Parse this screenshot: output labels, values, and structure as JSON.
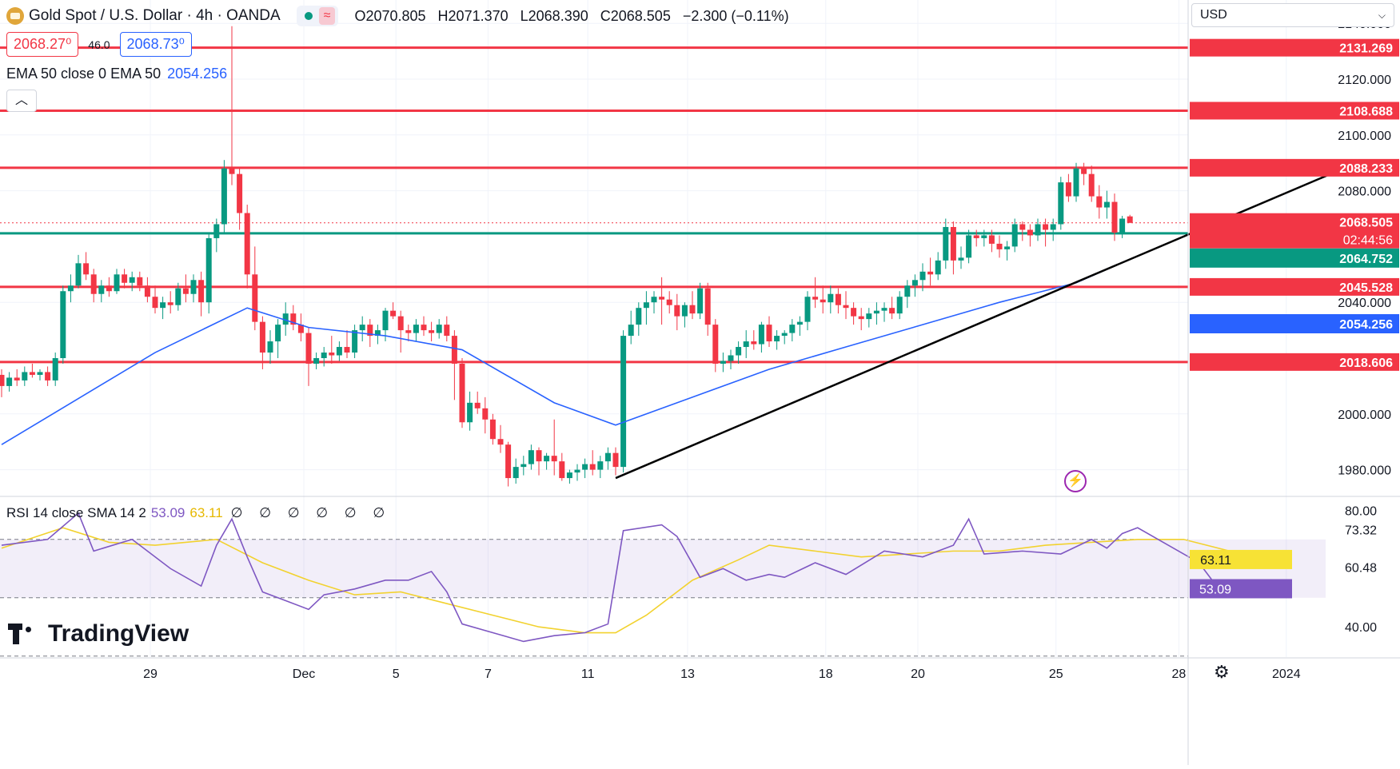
{
  "header": {
    "symbol": "Gold Spot / U.S. Dollar · 4h · OANDA",
    "open": "O2070.805",
    "high": "H2071.370",
    "low": "L2068.390",
    "close": "C2068.505",
    "change": "−2.300 (−0.11%)"
  },
  "quote": {
    "bid": "2068.27⁰",
    "spread": "46.0",
    "ask": "2068.73⁰"
  },
  "ema_legend": {
    "label": "EMA 50 close 0 EMA 50",
    "value": "2054.256"
  },
  "rsi_legend": {
    "label": "RSI 14 close SMA 14 2",
    "rsi": "53.09",
    "sma": "63.11",
    "nulls": "∅ ∅ ∅ ∅ ∅ ∅"
  },
  "currency": "USD",
  "brand": "TradingView",
  "colors": {
    "up": "#089981",
    "down": "#f23645",
    "ema": "#2962ff",
    "level": "#f23645",
    "support": "#089981",
    "rsi": "#7e57c2",
    "rsi_sma": "#f2d22f"
  },
  "chart_data": {
    "type": "candlestick",
    "symbol": "XAUUSD",
    "timeframe": "4h",
    "x_ticks": [
      "29",
      "Dec",
      "5",
      "7",
      "11",
      "13",
      "18",
      "20",
      "25",
      "28",
      "2024"
    ],
    "y_ticks": [
      "2140.000",
      "2120.000",
      "2100.000",
      "2080.000",
      "2040.000",
      "2000.000",
      "1980.000"
    ],
    "ylim": [
      1976.5,
      2146
    ],
    "candles": [
      [
        2014,
        2016,
        2006,
        2010
      ],
      [
        2010,
        2015,
        2008,
        2013
      ],
      [
        2013,
        2016,
        2010,
        2012
      ],
      [
        2012,
        2017,
        2010,
        2015
      ],
      [
        2015,
        2018,
        2013,
        2014
      ],
      [
        2014,
        2016,
        2012,
        2015
      ],
      [
        2015,
        2017,
        2010,
        2012
      ],
      [
        2012,
        2022,
        2010,
        2020
      ],
      [
        2020,
        2046,
        2018,
        2044
      ],
      [
        2044,
        2050,
        2040,
        2046
      ],
      [
        2046,
        2057,
        2045,
        2054
      ],
      [
        2054,
        2058,
        2048,
        2050
      ],
      [
        2050,
        2052,
        2040,
        2043
      ],
      [
        2043,
        2048,
        2040,
        2046
      ],
      [
        2046,
        2049,
        2042,
        2044
      ],
      [
        2044,
        2052,
        2043,
        2050
      ],
      [
        2050,
        2052,
        2045,
        2047
      ],
      [
        2047,
        2051,
        2044,
        2049
      ],
      [
        2049,
        2051,
        2044,
        2046
      ],
      [
        2046,
        2049,
        2040,
        2042
      ],
      [
        2042,
        2046,
        2036,
        2038
      ],
      [
        2038,
        2042,
        2034,
        2040
      ],
      [
        2040,
        2044,
        2036,
        2039
      ],
      [
        2039,
        2047,
        2037,
        2045
      ],
      [
        2045,
        2050,
        2040,
        2043
      ],
      [
        2043,
        2050,
        2040,
        2048
      ],
      [
        2048,
        2051,
        2035,
        2040
      ],
      [
        2040,
        2065,
        2036,
        2063
      ],
      [
        2063,
        2070,
        2058,
        2068
      ],
      [
        2068,
        2091,
        2065,
        2088
      ],
      [
        2088,
        2139,
        2082,
        2086
      ],
      [
        2086,
        2088,
        2066,
        2072
      ],
      [
        2072,
        2075,
        2045,
        2050
      ],
      [
        2050,
        2060,
        2030,
        2033
      ],
      [
        2033,
        2035,
        2016,
        2022
      ],
      [
        2022,
        2030,
        2018,
        2026
      ],
      [
        2026,
        2034,
        2020,
        2032
      ],
      [
        2032,
        2040,
        2028,
        2036
      ],
      [
        2036,
        2039,
        2030,
        2032
      ],
      [
        2032,
        2036,
        2026,
        2029
      ],
      [
        2029,
        2031,
        2010,
        2018
      ],
      [
        2018,
        2022,
        2016,
        2020
      ],
      [
        2020,
        2024,
        2017,
        2022
      ],
      [
        2022,
        2028,
        2018,
        2021
      ],
      [
        2021,
        2026,
        2019,
        2024
      ],
      [
        2024,
        2030,
        2020,
        2022
      ],
      [
        2022,
        2032,
        2020,
        2030
      ],
      [
        2030,
        2035,
        2026,
        2032
      ],
      [
        2032,
        2034,
        2024,
        2028
      ],
      [
        2028,
        2032,
        2025,
        2030
      ],
      [
        2030,
        2038,
        2026,
        2037
      ],
      [
        2037,
        2040,
        2034,
        2035
      ],
      [
        2035,
        2037,
        2022,
        2030
      ],
      [
        2030,
        2032,
        2026,
        2029
      ],
      [
        2029,
        2034,
        2026,
        2032
      ],
      [
        2032,
        2035,
        2028,
        2030
      ],
      [
        2030,
        2033,
        2026,
        2029
      ],
      [
        2029,
        2034,
        2027,
        2032
      ],
      [
        2032,
        2035,
        2026,
        2028
      ],
      [
        2028,
        2030,
        2005,
        2018
      ],
      [
        2018,
        2020,
        1995,
        1997
      ],
      [
        1997,
        2008,
        1994,
        2004
      ],
      [
        2004,
        2008,
        2000,
        2002
      ],
      [
        2002,
        2006,
        1993,
        1998
      ],
      [
        1998,
        2000,
        1989,
        1991
      ],
      [
        1991,
        1996,
        1986,
        1989
      ],
      [
        1989,
        1990,
        1974,
        1977
      ],
      [
        1977,
        1984,
        1975,
        1981
      ],
      [
        1981,
        1985,
        1978,
        1982
      ],
      [
        1982,
        1989,
        1980,
        1987
      ],
      [
        1987,
        1988,
        1978,
        1983
      ],
      [
        1983,
        1986,
        1980,
        1985
      ],
      [
        1985,
        1998,
        1978,
        1983
      ],
      [
        1983,
        1986,
        1976,
        1977
      ],
      [
        1977,
        1980,
        1975,
        1979
      ],
      [
        1979,
        1982,
        1976,
        1980
      ],
      [
        1980,
        1984,
        1977,
        1982
      ],
      [
        1982,
        1987,
        1978,
        1980
      ],
      [
        1980,
        1985,
        1977,
        1983
      ],
      [
        1983,
        1988,
        1980,
        1986
      ],
      [
        1986,
        1988,
        1978,
        1981
      ],
      [
        1981,
        2030,
        1979,
        2028
      ],
      [
        2028,
        2037,
        2025,
        2032
      ],
      [
        2032,
        2040,
        2028,
        2038
      ],
      [
        2038,
        2044,
        2032,
        2040
      ],
      [
        2040,
        2044,
        2036,
        2042
      ],
      [
        2042,
        2049,
        2032,
        2041
      ],
      [
        2041,
        2044,
        2036,
        2039
      ],
      [
        2039,
        2043,
        2030,
        2035
      ],
      [
        2035,
        2040,
        2031,
        2039
      ],
      [
        2039,
        2044,
        2034,
        2036
      ],
      [
        2036,
        2047,
        2034,
        2045
      ],
      [
        2045,
        2047,
        2028,
        2032
      ],
      [
        2032,
        2034,
        2015,
        2018
      ],
      [
        2018,
        2022,
        2015,
        2019
      ],
      [
        2019,
        2023,
        2016,
        2021
      ],
      [
        2021,
        2026,
        2018,
        2024
      ],
      [
        2024,
        2030,
        2020,
        2026
      ],
      [
        2026,
        2030,
        2023,
        2025
      ],
      [
        2025,
        2033,
        2022,
        2032
      ],
      [
        2032,
        2035,
        2024,
        2026
      ],
      [
        2026,
        2030,
        2023,
        2028
      ],
      [
        2028,
        2030,
        2025,
        2029
      ],
      [
        2029,
        2034,
        2026,
        2032
      ],
      [
        2032,
        2035,
        2028,
        2033
      ],
      [
        2033,
        2044,
        2030,
        2042
      ],
      [
        2042,
        2049,
        2038,
        2041
      ],
      [
        2041,
        2046,
        2036,
        2040
      ],
      [
        2040,
        2046,
        2036,
        2043
      ],
      [
        2043,
        2045,
        2036,
        2039
      ],
      [
        2039,
        2044,
        2034,
        2038
      ],
      [
        2038,
        2040,
        2032,
        2035
      ],
      [
        2035,
        2038,
        2030,
        2034
      ],
      [
        2034,
        2038,
        2031,
        2036
      ],
      [
        2036,
        2040,
        2032,
        2037
      ],
      [
        2037,
        2040,
        2033,
        2038
      ],
      [
        2038,
        2042,
        2034,
        2036
      ],
      [
        2036,
        2044,
        2034,
        2042
      ],
      [
        2042,
        2048,
        2038,
        2046
      ],
      [
        2046,
        2050,
        2042,
        2048
      ],
      [
        2048,
        2054,
        2044,
        2051
      ],
      [
        2051,
        2056,
        2046,
        2050
      ],
      [
        2050,
        2058,
        2048,
        2055
      ],
      [
        2055,
        2070,
        2052,
        2067
      ],
      [
        2067,
        2069,
        2050,
        2055
      ],
      [
        2055,
        2060,
        2052,
        2056
      ],
      [
        2056,
        2066,
        2054,
        2064
      ],
      [
        2064,
        2066,
        2060,
        2063
      ],
      [
        2063,
        2066,
        2060,
        2064
      ],
      [
        2064,
        2066,
        2058,
        2061
      ],
      [
        2061,
        2064,
        2056,
        2059
      ],
      [
        2059,
        2062,
        2055,
        2060
      ],
      [
        2060,
        2070,
        2058,
        2068
      ],
      [
        2068,
        2069,
        2062,
        2066
      ],
      [
        2066,
        2068,
        2060,
        2064
      ],
      [
        2064,
        2070,
        2062,
        2068
      ],
      [
        2068,
        2070,
        2060,
        2066
      ],
      [
        2066,
        2070,
        2062,
        2068
      ],
      [
        2068,
        2085,
        2066,
        2083
      ],
      [
        2083,
        2086,
        2076,
        2078
      ],
      [
        2078,
        2090,
        2076,
        2088
      ],
      [
        2088,
        2090,
        2082,
        2086
      ],
      [
        2086,
        2089,
        2076,
        2078
      ],
      [
        2078,
        2082,
        2070,
        2074
      ],
      [
        2074,
        2080,
        2070,
        2076
      ],
      [
        2076,
        2079,
        2062,
        2065
      ],
      [
        2065,
        2071,
        2063,
        2070
      ],
      [
        2070.805,
        2071.37,
        2068.39,
        2068.505
      ]
    ],
    "ema50_points": [
      [
        0,
        1989
      ],
      [
        20,
        2022
      ],
      [
        32,
        2038
      ],
      [
        40,
        2031
      ],
      [
        50,
        2028
      ],
      [
        60,
        2023
      ],
      [
        72,
        2004
      ],
      [
        80,
        1996
      ],
      [
        90,
        2006
      ],
      [
        100,
        2016
      ],
      [
        110,
        2024
      ],
      [
        120,
        2032
      ],
      [
        130,
        2040
      ],
      [
        140,
        2047
      ],
      [
        146,
        2054.256
      ]
    ],
    "horizontal_levels": [
      2131.269,
      2108.688,
      2088.233,
      2045.528,
      2018.606
    ],
    "support_level": 2064.752,
    "trendline": {
      "from": [
        80,
        1977
      ],
      "to": [
        158,
        2085
      ]
    },
    "price_labels": [
      "2131.269",
      "2108.688",
      "2088.233",
      "2068.505",
      "02:44:56",
      "2064.752",
      "2054.256",
      "2045.528",
      "2018.606"
    ],
    "rsi": {
      "ylim": [
        28,
        82
      ],
      "y_ticks": [
        "80.00",
        "73.32",
        "60.48",
        "40.00"
      ],
      "band": [
        70,
        50
      ],
      "labels": [
        "63.11",
        "53.09"
      ],
      "rsi_points": [
        [
          0,
          68
        ],
        [
          6,
          70
        ],
        [
          10,
          79
        ],
        [
          12,
          66
        ],
        [
          17,
          70
        ],
        [
          22,
          60
        ],
        [
          26,
          54
        ],
        [
          28,
          68
        ],
        [
          30,
          77
        ],
        [
          32,
          64
        ],
        [
          34,
          52
        ],
        [
          37,
          49
        ],
        [
          40,
          46
        ],
        [
          42,
          51
        ],
        [
          46,
          53
        ],
        [
          50,
          56
        ],
        [
          53,
          56
        ],
        [
          56,
          59
        ],
        [
          58,
          52
        ],
        [
          60,
          41
        ],
        [
          64,
          38
        ],
        [
          68,
          35
        ],
        [
          72,
          37
        ],
        [
          76,
          38
        ],
        [
          79,
          41
        ],
        [
          81,
          73
        ],
        [
          86,
          75
        ],
        [
          88,
          71
        ],
        [
          91,
          57
        ],
        [
          94,
          60
        ],
        [
          97,
          56
        ],
        [
          100,
          58
        ],
        [
          102,
          57
        ],
        [
          106,
          62
        ],
        [
          110,
          58
        ],
        [
          115,
          66
        ],
        [
          120,
          64
        ],
        [
          124,
          68
        ],
        [
          126,
          77
        ],
        [
          128,
          65
        ],
        [
          133,
          66
        ],
        [
          138,
          65
        ],
        [
          142,
          70
        ],
        [
          144,
          67
        ],
        [
          146,
          72
        ],
        [
          148,
          74
        ],
        [
          152,
          68
        ],
        [
          156,
          62
        ],
        [
          158,
          55
        ],
        [
          162,
          53
        ]
      ],
      "sma_points": [
        [
          0,
          67
        ],
        [
          8,
          74
        ],
        [
          14,
          69
        ],
        [
          20,
          68
        ],
        [
          28,
          70
        ],
        [
          34,
          62
        ],
        [
          40,
          56
        ],
        [
          46,
          51
        ],
        [
          52,
          52
        ],
        [
          58,
          48
        ],
        [
          64,
          44
        ],
        [
          70,
          40
        ],
        [
          76,
          38
        ],
        [
          80,
          38
        ],
        [
          84,
          44
        ],
        [
          90,
          56
        ],
        [
          96,
          63
        ],
        [
          100,
          68
        ],
        [
          106,
          66
        ],
        [
          112,
          64
        ],
        [
          118,
          65
        ],
        [
          124,
          66
        ],
        [
          130,
          66
        ],
        [
          136,
          68
        ],
        [
          142,
          69
        ],
        [
          148,
          70
        ],
        [
          154,
          70
        ],
        [
          160,
          66
        ]
      ]
    }
  }
}
